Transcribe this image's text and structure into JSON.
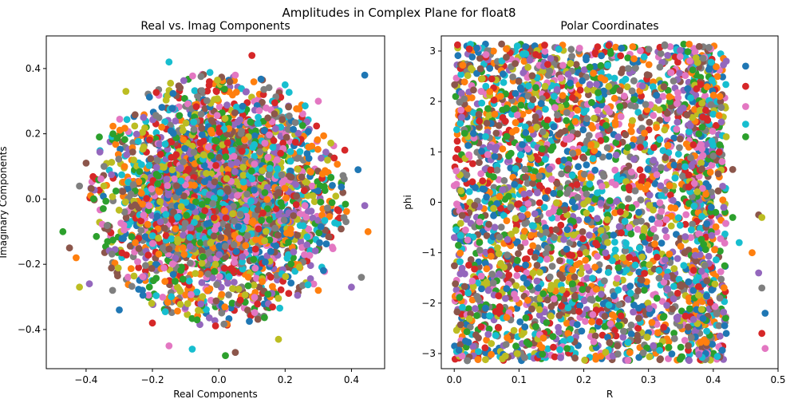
{
  "figure": {
    "suptitle": "Amplitudes in Complex Plane for float8"
  },
  "palette": [
    "#1f77b4",
    "#ff7f0e",
    "#2ca02c",
    "#d62728",
    "#9467bd",
    "#8c564b",
    "#e377c2",
    "#7f7f7f",
    "#bcbd22",
    "#17becf"
  ],
  "chart_data": [
    {
      "type": "scatter",
      "title": "Real vs. Imag Components",
      "xlabel": "Real Components",
      "ylabel": "Imaginary Components",
      "xlim": [
        -0.52,
        0.5
      ],
      "ylim": [
        -0.52,
        0.5
      ],
      "xticks": [
        -0.4,
        -0.2,
        0.0,
        0.2,
        0.4
      ],
      "xtick_labels": [
        "−0.4",
        "−0.2",
        "0.0",
        "0.2",
        "0.4"
      ],
      "yticks": [
        -0.4,
        -0.2,
        0.0,
        0.2,
        0.4
      ],
      "ytick_labels": [
        "−0.4",
        "−0.2",
        "0.0",
        "0.2",
        "0.4"
      ],
      "grid": false,
      "distribution": "dense cloud of points inside a disk of radius about 0.45 centred at the origin, one colour per amplitude series (10-colour cycle)",
      "points": [
        [
          0.44,
          0.38
        ],
        [
          0.1,
          0.44
        ],
        [
          0.05,
          0.38
        ],
        [
          -0.15,
          0.42
        ],
        [
          -0.47,
          -0.1
        ],
        [
          -0.45,
          -0.15
        ],
        [
          -0.42,
          -0.27
        ],
        [
          -0.43,
          -0.18
        ],
        [
          -0.39,
          -0.26
        ],
        [
          -0.32,
          -0.28
        ],
        [
          -0.3,
          -0.34
        ],
        [
          -0.2,
          -0.38
        ],
        [
          -0.15,
          -0.45
        ],
        [
          -0.08,
          -0.46
        ],
        [
          0.02,
          -0.48
        ],
        [
          0.05,
          -0.47
        ],
        [
          0.18,
          -0.43
        ],
        [
          0.3,
          -0.28
        ],
        [
          0.4,
          -0.27
        ],
        [
          0.43,
          -0.24
        ],
        [
          0.42,
          0.09
        ],
        [
          0.38,
          0.15
        ],
        [
          0.3,
          0.3
        ],
        [
          0.2,
          0.35
        ],
        [
          -0.36,
          0.19
        ],
        [
          -0.4,
          0.11
        ],
        [
          -0.28,
          0.33
        ],
        [
          0.45,
          -0.1
        ],
        [
          0.44,
          -0.02
        ],
        [
          -0.42,
          0.04
        ]
      ]
    },
    {
      "type": "scatter",
      "title": "Polar Coordinates",
      "xlabel": "R",
      "ylabel": "phi",
      "xlim": [
        -0.02,
        0.5
      ],
      "ylim": [
        -3.3,
        3.3
      ],
      "xticks": [
        0.0,
        0.1,
        0.2,
        0.3,
        0.4,
        0.5
      ],
      "xtick_labels": [
        "0.0",
        "0.1",
        "0.2",
        "0.3",
        "0.4",
        "0.5"
      ],
      "yticks": [
        -3,
        -2,
        -1,
        0,
        1,
        2,
        3
      ],
      "ytick_labels": [
        "−3",
        "−2",
        "−1",
        "0",
        "1",
        "2",
        "3"
      ],
      "grid": false,
      "distribution": "points fill the band R from 0.0 to about 0.42 and phi from -pi to pi, with sparse outliers at R near 0.45 and 0.48",
      "points": [
        [
          0.45,
          2.7
        ],
        [
          0.45,
          2.3
        ],
        [
          0.45,
          1.9
        ],
        [
          0.45,
          1.55
        ],
        [
          0.45,
          1.3
        ],
        [
          0.47,
          -0.25
        ],
        [
          0.475,
          -0.3
        ],
        [
          0.46,
          -1.0
        ],
        [
          0.47,
          -1.4
        ],
        [
          0.475,
          -1.7
        ],
        [
          0.48,
          -2.2
        ],
        [
          0.475,
          -2.6
        ],
        [
          0.48,
          -2.9
        ],
        [
          0.44,
          -0.8
        ],
        [
          0.43,
          -0.3
        ],
        [
          0.43,
          0.65
        ],
        [
          0.42,
          1.3
        ],
        [
          0.41,
          2.1
        ],
        [
          0.42,
          2.8
        ],
        [
          0.41,
          -1.9
        ],
        [
          0.42,
          -2.6
        ]
      ]
    }
  ]
}
